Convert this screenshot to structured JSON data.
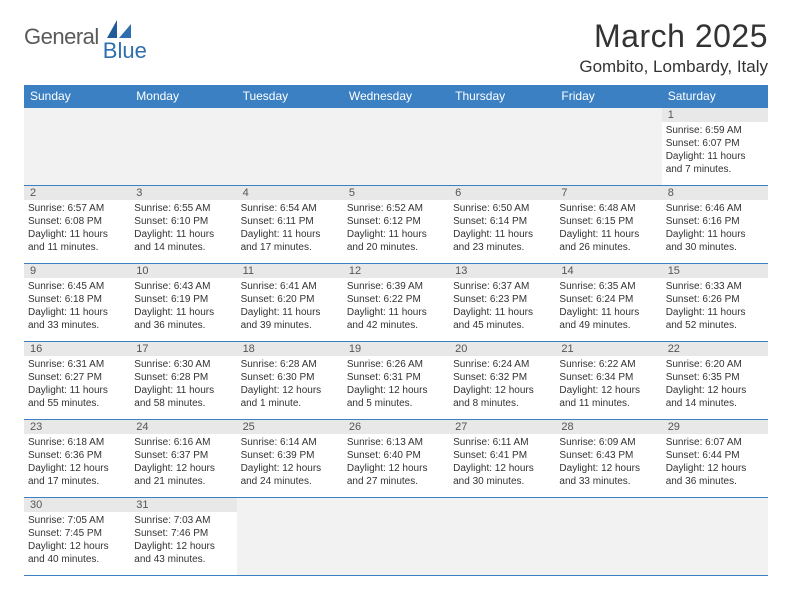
{
  "logo": {
    "main": "General",
    "sub": "Blue"
  },
  "title": "March 2025",
  "location": "Gombito, Lombardy, Italy",
  "colors": {
    "header_bg": "#3b80c2",
    "header_text": "#ffffff",
    "border": "#3b80c2",
    "daynum_bg": "#e8e8e8",
    "blank_bg": "#f2f2f2",
    "logo_main": "#5a5a5a",
    "logo_sub": "#2f6fae"
  },
  "weekdays": [
    "Sunday",
    "Monday",
    "Tuesday",
    "Wednesday",
    "Thursday",
    "Friday",
    "Saturday"
  ],
  "weeks": [
    [
      null,
      null,
      null,
      null,
      null,
      null,
      {
        "n": "1",
        "sunrise": "6:59 AM",
        "sunset": "6:07 PM",
        "daylight": "11 hours and 7 minutes."
      }
    ],
    [
      {
        "n": "2",
        "sunrise": "6:57 AM",
        "sunset": "6:08 PM",
        "daylight": "11 hours and 11 minutes."
      },
      {
        "n": "3",
        "sunrise": "6:55 AM",
        "sunset": "6:10 PM",
        "daylight": "11 hours and 14 minutes."
      },
      {
        "n": "4",
        "sunrise": "6:54 AM",
        "sunset": "6:11 PM",
        "daylight": "11 hours and 17 minutes."
      },
      {
        "n": "5",
        "sunrise": "6:52 AM",
        "sunset": "6:12 PM",
        "daylight": "11 hours and 20 minutes."
      },
      {
        "n": "6",
        "sunrise": "6:50 AM",
        "sunset": "6:14 PM",
        "daylight": "11 hours and 23 minutes."
      },
      {
        "n": "7",
        "sunrise": "6:48 AM",
        "sunset": "6:15 PM",
        "daylight": "11 hours and 26 minutes."
      },
      {
        "n": "8",
        "sunrise": "6:46 AM",
        "sunset": "6:16 PM",
        "daylight": "11 hours and 30 minutes."
      }
    ],
    [
      {
        "n": "9",
        "sunrise": "6:45 AM",
        "sunset": "6:18 PM",
        "daylight": "11 hours and 33 minutes."
      },
      {
        "n": "10",
        "sunrise": "6:43 AM",
        "sunset": "6:19 PM",
        "daylight": "11 hours and 36 minutes."
      },
      {
        "n": "11",
        "sunrise": "6:41 AM",
        "sunset": "6:20 PM",
        "daylight": "11 hours and 39 minutes."
      },
      {
        "n": "12",
        "sunrise": "6:39 AM",
        "sunset": "6:22 PM",
        "daylight": "11 hours and 42 minutes."
      },
      {
        "n": "13",
        "sunrise": "6:37 AM",
        "sunset": "6:23 PM",
        "daylight": "11 hours and 45 minutes."
      },
      {
        "n": "14",
        "sunrise": "6:35 AM",
        "sunset": "6:24 PM",
        "daylight": "11 hours and 49 minutes."
      },
      {
        "n": "15",
        "sunrise": "6:33 AM",
        "sunset": "6:26 PM",
        "daylight": "11 hours and 52 minutes."
      }
    ],
    [
      {
        "n": "16",
        "sunrise": "6:31 AM",
        "sunset": "6:27 PM",
        "daylight": "11 hours and 55 minutes."
      },
      {
        "n": "17",
        "sunrise": "6:30 AM",
        "sunset": "6:28 PM",
        "daylight": "11 hours and 58 minutes."
      },
      {
        "n": "18",
        "sunrise": "6:28 AM",
        "sunset": "6:30 PM",
        "daylight": "12 hours and 1 minute."
      },
      {
        "n": "19",
        "sunrise": "6:26 AM",
        "sunset": "6:31 PM",
        "daylight": "12 hours and 5 minutes."
      },
      {
        "n": "20",
        "sunrise": "6:24 AM",
        "sunset": "6:32 PM",
        "daylight": "12 hours and 8 minutes."
      },
      {
        "n": "21",
        "sunrise": "6:22 AM",
        "sunset": "6:34 PM",
        "daylight": "12 hours and 11 minutes."
      },
      {
        "n": "22",
        "sunrise": "6:20 AM",
        "sunset": "6:35 PM",
        "daylight": "12 hours and 14 minutes."
      }
    ],
    [
      {
        "n": "23",
        "sunrise": "6:18 AM",
        "sunset": "6:36 PM",
        "daylight": "12 hours and 17 minutes."
      },
      {
        "n": "24",
        "sunrise": "6:16 AM",
        "sunset": "6:37 PM",
        "daylight": "12 hours and 21 minutes."
      },
      {
        "n": "25",
        "sunrise": "6:14 AM",
        "sunset": "6:39 PM",
        "daylight": "12 hours and 24 minutes."
      },
      {
        "n": "26",
        "sunrise": "6:13 AM",
        "sunset": "6:40 PM",
        "daylight": "12 hours and 27 minutes."
      },
      {
        "n": "27",
        "sunrise": "6:11 AM",
        "sunset": "6:41 PM",
        "daylight": "12 hours and 30 minutes."
      },
      {
        "n": "28",
        "sunrise": "6:09 AM",
        "sunset": "6:43 PM",
        "daylight": "12 hours and 33 minutes."
      },
      {
        "n": "29",
        "sunrise": "6:07 AM",
        "sunset": "6:44 PM",
        "daylight": "12 hours and 36 minutes."
      }
    ],
    [
      {
        "n": "30",
        "sunrise": "7:05 AM",
        "sunset": "7:45 PM",
        "daylight": "12 hours and 40 minutes."
      },
      {
        "n": "31",
        "sunrise": "7:03 AM",
        "sunset": "7:46 PM",
        "daylight": "12 hours and 43 minutes."
      },
      null,
      null,
      null,
      null,
      null
    ]
  ],
  "labels": {
    "sunrise": "Sunrise:",
    "sunset": "Sunset:",
    "daylight": "Daylight:"
  }
}
